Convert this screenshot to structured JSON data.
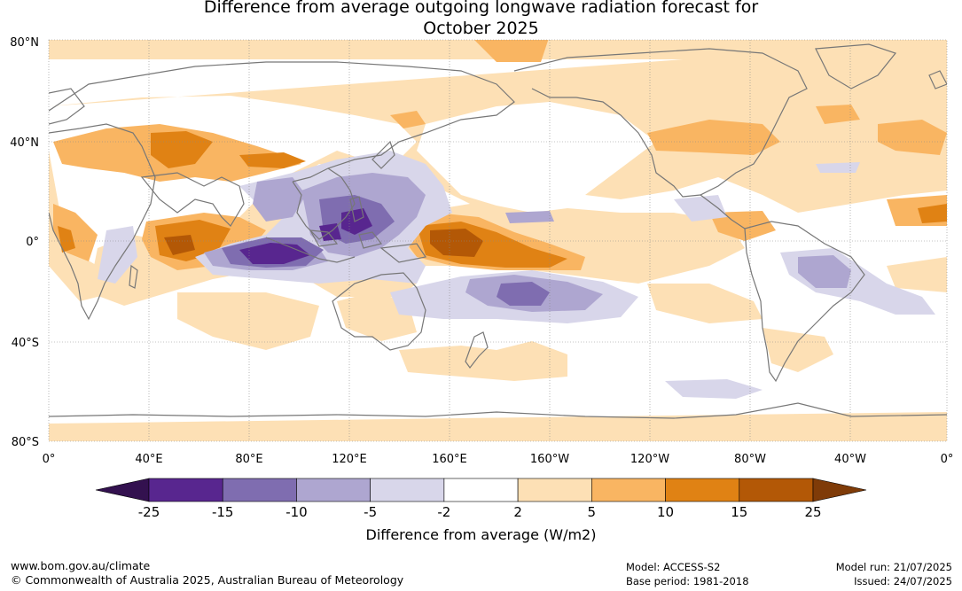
{
  "title": {
    "line1": "Difference from average outgoing longwave radiation forecast for",
    "line2": "October 2025"
  },
  "map": {
    "lat_labels": [
      "80°N",
      "40°N",
      "0°",
      "40°S",
      "80°S"
    ],
    "lon_labels": [
      "0°",
      "40°E",
      "80°E",
      "120°E",
      "160°E",
      "160°W",
      "120°W",
      "80°W",
      "40°W",
      "0°"
    ],
    "longitude_range": [
      0,
      360
    ],
    "latitude_range": [
      -80,
      80
    ]
  },
  "colorbar": {
    "label": "Difference from average (W/m2)",
    "ticks": [
      "-25",
      "-15",
      "-10",
      "-5",
      "-2",
      "2",
      "5",
      "10",
      "15",
      "25"
    ],
    "colors": [
      "#33114f",
      "#58268f",
      "#7f6db0",
      "#aea6d0",
      "#d8d6ea",
      "#ffffff",
      "#fde0b5",
      "#f9b562",
      "#e08214",
      "#b35806",
      "#7f3b08"
    ]
  },
  "footer": {
    "website": "www.bom.gov.au/climate",
    "copyright": "© Commonwealth of Australia 2025, Australian Bureau of Meteorology",
    "model": "Model: ACCESS-S2",
    "base_period": "Base period: 1981-2018",
    "model_run": "Model run: 21/07/2025",
    "issued": "Issued: 24/07/2025"
  }
}
